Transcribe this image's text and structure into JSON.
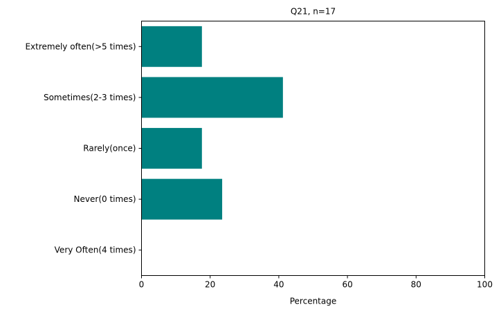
{
  "chart_data": {
    "type": "bar",
    "orientation": "horizontal",
    "title": "Q21, n=17",
    "xlabel": "Percentage",
    "ylabel": "",
    "xlim": [
      0,
      100
    ],
    "xticks": [
      0,
      20,
      40,
      60,
      80,
      100
    ],
    "categories": [
      "Very Often(4 times)",
      "Never(0 times)",
      "Rarely(once)",
      "Sometimes(2-3 times)",
      "Extremely often(>5 times)"
    ],
    "values": [
      0,
      23.5,
      17.6,
      41.2,
      17.6
    ],
    "bar_color": "#008080",
    "grid": false,
    "legend": "none"
  }
}
